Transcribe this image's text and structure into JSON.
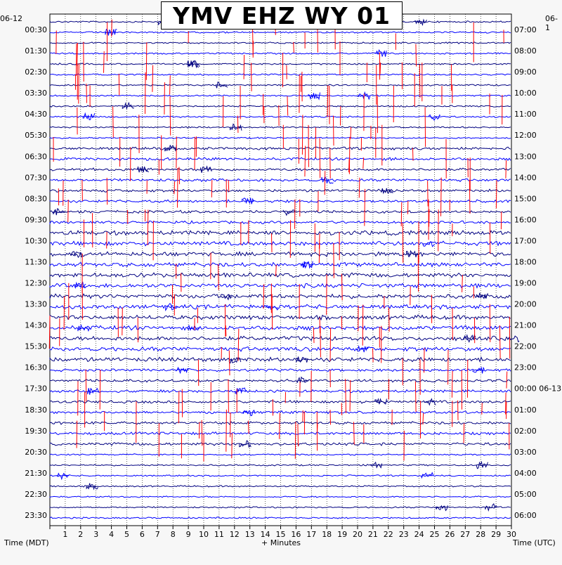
{
  "title": "YMV EHZ WY 01",
  "date_left": "06-12",
  "date_right_top": "06-1",
  "left_axis_label": "Time (MDT)",
  "right_axis_label": "Time (UTC)",
  "bottom_axis_label": "+ Minutes",
  "colors": {
    "trace_a": "#000080",
    "trace_b": "#0000ff",
    "event": "#ff0000",
    "gridline": "#000000"
  },
  "chart_data": {
    "type": "line",
    "title": "YMV EHZ WY 01",
    "xlabel": "+ Minutes",
    "ylabel_left": "Time (MDT)",
    "ylabel_right": "Time (UTC)",
    "x_range": [
      0,
      30
    ],
    "x_ticks": [
      "1",
      "2",
      "3",
      "4",
      "5",
      "6",
      "7",
      "8",
      "9",
      "10",
      "11",
      "12",
      "13",
      "14",
      "15",
      "16",
      "17",
      "18",
      "19",
      "20",
      "21",
      "22",
      "23",
      "24",
      "25",
      "26",
      "27",
      "28",
      "29",
      "30"
    ],
    "left_ticks": [
      "00:30",
      "01:30",
      "02:30",
      "03:30",
      "04:30",
      "05:30",
      "06:30",
      "07:30",
      "08:30",
      "09:30",
      "10:30",
      "11:30",
      "12:30",
      "13:30",
      "14:30",
      "15:30",
      "16:30",
      "17:30",
      "18:30",
      "19:30",
      "20:30",
      "21:30",
      "22:30",
      "23:30"
    ],
    "right_ticks": [
      "07:00",
      "08:00",
      "09:00",
      "10:00",
      "11:00",
      "12:00",
      "13:00",
      "14:00",
      "15:00",
      "16:00",
      "17:00",
      "18:00",
      "19:00",
      "20:00",
      "21:00",
      "22:00",
      "23:00",
      "00:00 06-13",
      "01:00",
      "02:00",
      "03:00",
      "04:00",
      "05:00",
      "06:00"
    ],
    "rows": 48,
    "row_minutes": 30,
    "trace_colors_cycle": [
      "#000080",
      "#0000ff"
    ],
    "grid": true
  }
}
